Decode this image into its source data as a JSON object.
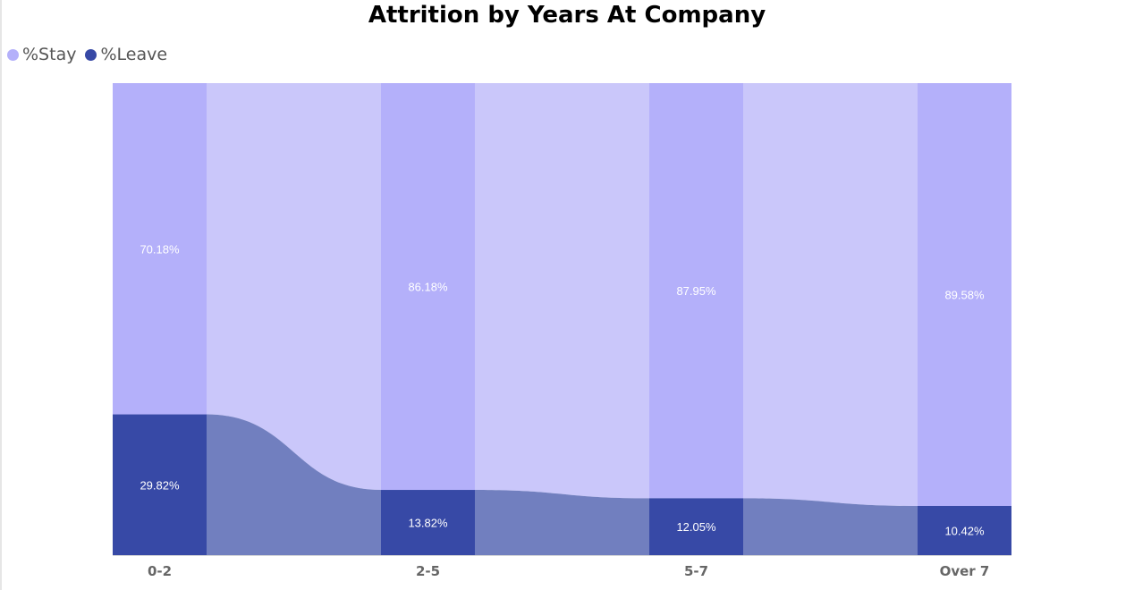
{
  "chart_data": {
    "type": "ribbon",
    "title": "Attrition by Years At Company",
    "categories": [
      "0-2",
      "2-5",
      "5-7",
      "Over 7"
    ],
    "series": [
      {
        "name": "%Stay",
        "values": [
          70.18,
          86.18,
          87.95,
          89.58
        ],
        "labels": [
          "70.18%",
          "86.18%",
          "87.95%",
          "89.58%"
        ],
        "color": "#b4b0fa",
        "ribbon_color": "#cac7fa"
      },
      {
        "name": "%Leave",
        "values": [
          29.82,
          13.82,
          12.05,
          10.42
        ],
        "labels": [
          "29.82%",
          "13.82%",
          "12.05%",
          "10.42%"
        ],
        "color": "#3749a6",
        "ribbon_color": "#717fbf"
      }
    ],
    "ylim": [
      0,
      100
    ],
    "stacked": true,
    "legend_position": "top-left"
  }
}
